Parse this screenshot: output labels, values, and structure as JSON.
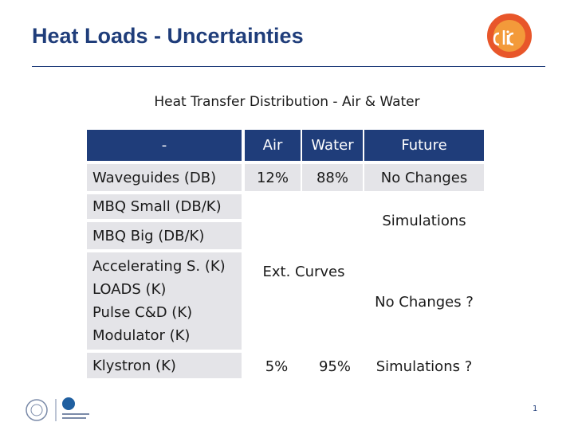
{
  "header": {
    "title": "Heat Loads - Uncertainties",
    "subtitle": "Heat Transfer Distribution - Air & Water"
  },
  "table": {
    "columns": [
      "-",
      "Air",
      "Water",
      "Future"
    ],
    "row_labels": [
      "Waveguides (DB)",
      "MBQ Small (DB/K)",
      "MBQ Big (DB/K)",
      "Accelerating S. (K)",
      "LOADS (K)",
      "Pulse C&D (K)",
      "Modulator (K)",
      "Klystron (K)"
    ],
    "cells": {
      "waveguides_air": "12%",
      "waveguides_water": "88%",
      "waveguides_future": "No Changes",
      "mbq_future": "Simulations",
      "middle_air_water": "Ext. Curves",
      "middle_future": "No Changes ?",
      "klystron_air": "5%",
      "klystron_water": "95%",
      "klystron_future": "Simulations ?"
    }
  },
  "footer": {
    "page": "1"
  }
}
